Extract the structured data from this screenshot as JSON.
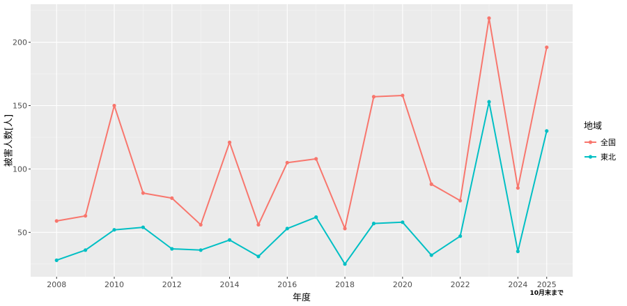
{
  "chart_data": {
    "type": "line",
    "xlabel": "年度",
    "ylabel": "被害人数[人]",
    "x": [
      2008,
      2009,
      2010,
      2011,
      2012,
      2013,
      2014,
      2015,
      2016,
      2017,
      2018,
      2019,
      2020,
      2021,
      2022,
      2023,
      2024,
      2025
    ],
    "x_ticks": [
      "2008",
      "2010",
      "2012",
      "2014",
      "2016",
      "2018",
      "2020",
      "2022",
      "2024",
      "2025"
    ],
    "xlim": [
      2007.1,
      2025.9
    ],
    "y_ticks": [
      50,
      100,
      150,
      200
    ],
    "ylim": [
      15,
      230
    ],
    "grid": true,
    "legend": {
      "title": "地域",
      "position": "right"
    },
    "annotation": "10月末まで",
    "series": [
      {
        "name": "全国",
        "color": "#F8766D",
        "values": [
          59,
          63,
          150,
          81,
          77,
          56,
          121,
          56,
          105,
          108,
          53,
          157,
          158,
          88,
          75,
          219,
          85,
          196
        ]
      },
      {
        "name": "東北",
        "color": "#00BFC4",
        "values": [
          28,
          36,
          52,
          54,
          37,
          36,
          44,
          31,
          53,
          62,
          25,
          57,
          58,
          32,
          47,
          153,
          35,
          130
        ]
      }
    ]
  }
}
